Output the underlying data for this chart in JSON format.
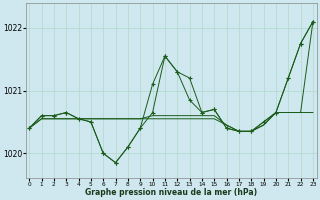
{
  "background_color": "#cfe8f0",
  "grid_color": "#b0d8c8",
  "line_color": "#1a5c1a",
  "x_min": -0.3,
  "x_max": 23.3,
  "y_min": 1019.6,
  "y_max": 1022.4,
  "yticks": [
    1020,
    1021,
    1022
  ],
  "xticks": [
    0,
    1,
    2,
    3,
    4,
    5,
    6,
    7,
    8,
    9,
    10,
    11,
    12,
    13,
    14,
    15,
    16,
    17,
    18,
    19,
    20,
    21,
    22,
    23
  ],
  "xlabel": "Graphe pression niveau de la mer (hPa)",
  "s1": [
    1020.4,
    1020.6,
    1020.6,
    1020.65,
    1020.55,
    1020.5,
    1020.0,
    1019.85,
    1020.1,
    1020.4,
    1021.1,
    1021.55,
    1021.3,
    1020.85,
    1020.65,
    1020.7,
    1020.4,
    1020.35,
    1020.35,
    1020.5,
    1020.65,
    1021.2,
    1021.75,
    1022.1
  ],
  "s2": [
    1020.4,
    1020.6,
    1020.6,
    1020.65,
    1020.55,
    1020.5,
    1020.0,
    1019.85,
    1020.1,
    1020.4,
    1020.65,
    1021.55,
    1021.3,
    1021.2,
    1020.65,
    1020.7,
    1020.4,
    1020.35,
    1020.35,
    1020.5,
    1020.65,
    1021.2,
    1021.75,
    1022.1
  ],
  "s3": [
    1020.4,
    1020.55,
    1020.55,
    1020.55,
    1020.55,
    1020.55,
    1020.55,
    1020.55,
    1020.55,
    1020.55,
    1020.55,
    1020.55,
    1020.55,
    1020.55,
    1020.55,
    1020.55,
    1020.45,
    1020.35,
    1020.35,
    1020.45,
    1020.65,
    1020.65,
    1020.65,
    1022.1
  ],
  "s4": [
    1020.4,
    1020.55,
    1020.55,
    1020.55,
    1020.55,
    1020.55,
    1020.55,
    1020.55,
    1020.55,
    1020.55,
    1020.6,
    1020.6,
    1020.6,
    1020.6,
    1020.6,
    1020.6,
    1020.45,
    1020.35,
    1020.35,
    1020.45,
    1020.65,
    1020.65,
    1020.65,
    1020.65
  ]
}
